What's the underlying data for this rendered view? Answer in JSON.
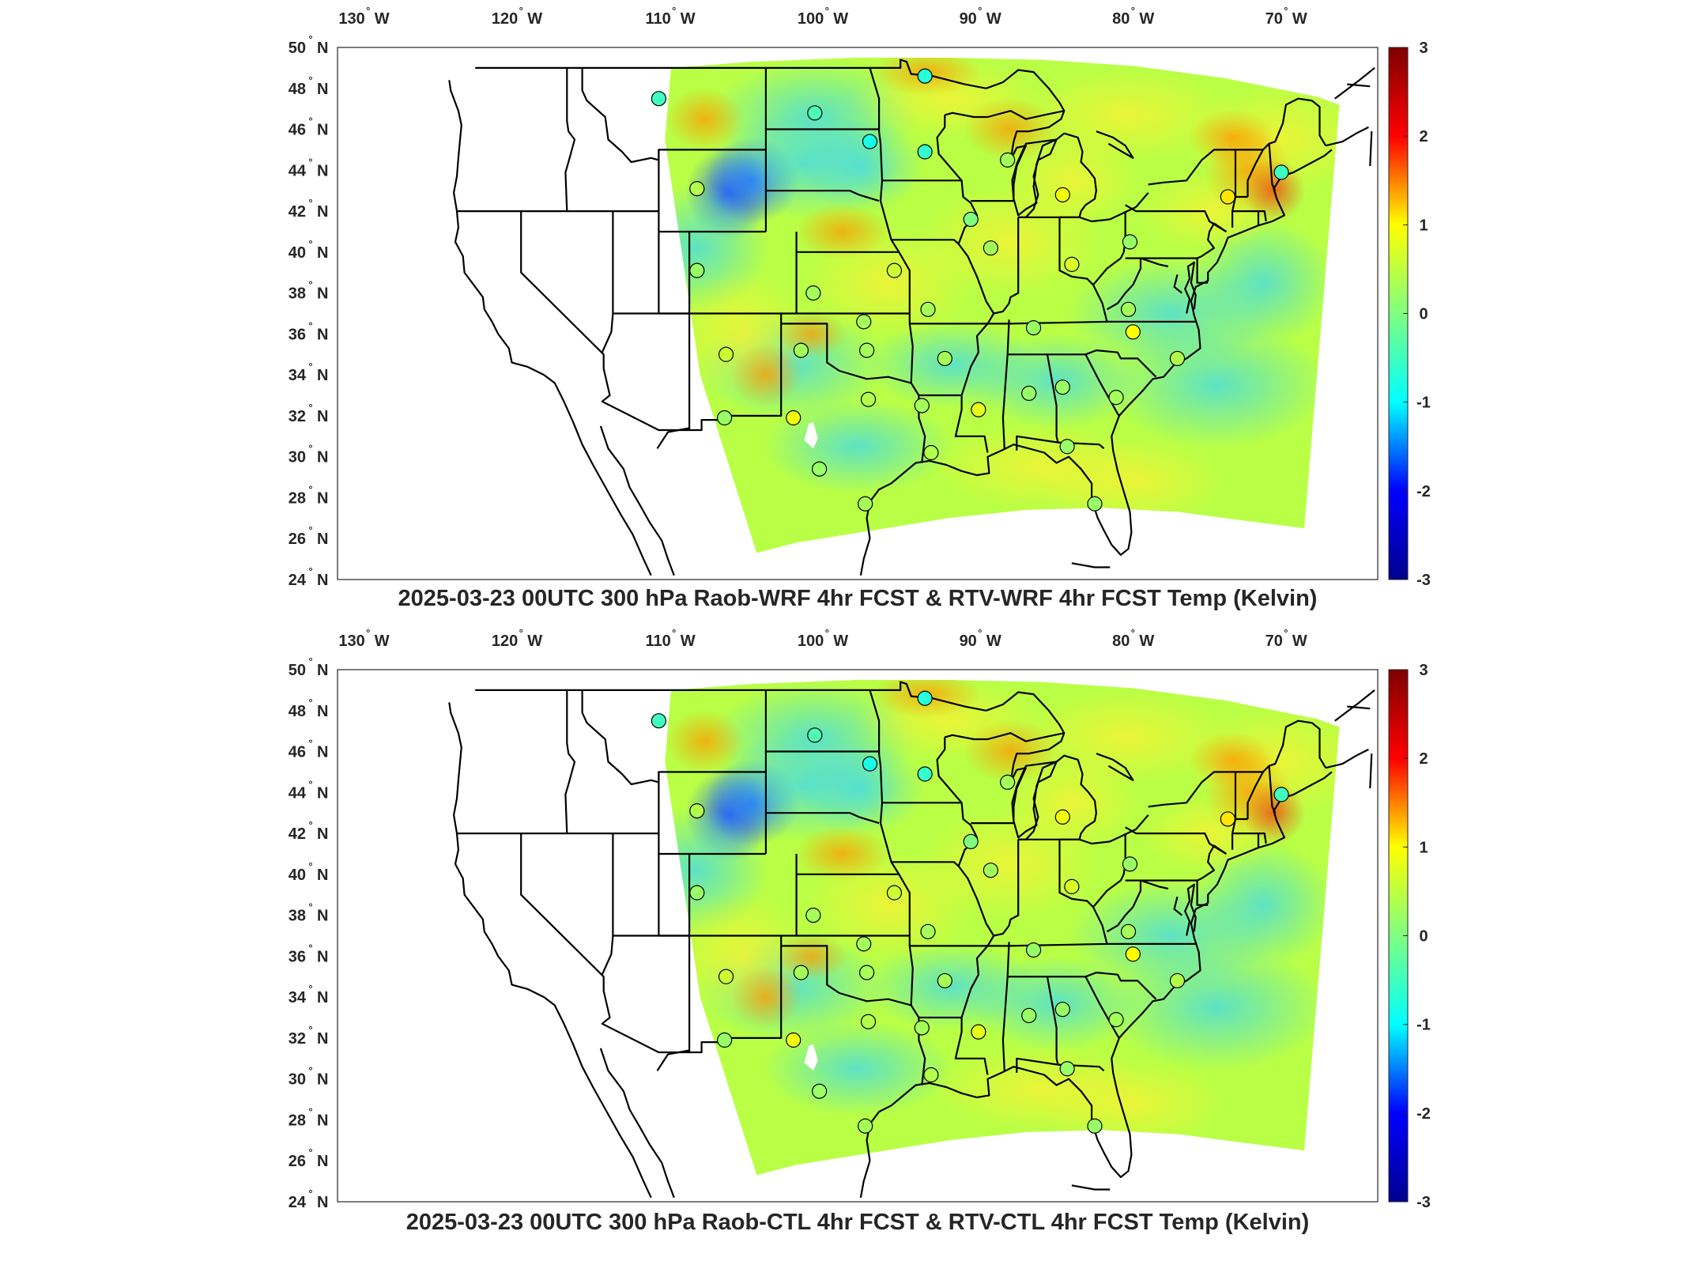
{
  "chart_data": [
    {
      "type": "heatmap",
      "title": "2025-03-23 00UTC 300 hPa Raob-WRF 4hr FCST & RTV-WRF 4hr FCST Temp (Kelvin)",
      "x_ticks": [
        {
          "value": -130,
          "label": "130",
          "hemi": "W"
        },
        {
          "value": -120,
          "label": "120",
          "hemi": "W"
        },
        {
          "value": -110,
          "label": "110",
          "hemi": "W"
        },
        {
          "value": -100,
          "label": "100",
          "hemi": "W"
        },
        {
          "value": -90,
          "label": "90",
          "hemi": "W"
        },
        {
          "value": -80,
          "label": "80",
          "hemi": "W"
        },
        {
          "value": -70,
          "label": "70",
          "hemi": "W"
        }
      ],
      "y_ticks": [
        {
          "value": 50,
          "label": "50",
          "hemi": "N"
        },
        {
          "value": 48,
          "label": "48",
          "hemi": "N"
        },
        {
          "value": 46,
          "label": "46",
          "hemi": "N"
        },
        {
          "value": 44,
          "label": "44",
          "hemi": "N"
        },
        {
          "value": 42,
          "label": "42",
          "hemi": "N"
        },
        {
          "value": 40,
          "label": "40",
          "hemi": "N"
        },
        {
          "value": 38,
          "label": "38",
          "hemi": "N"
        },
        {
          "value": 36,
          "label": "36",
          "hemi": "N"
        },
        {
          "value": 34,
          "label": "34",
          "hemi": "N"
        },
        {
          "value": 32,
          "label": "32",
          "hemi": "N"
        },
        {
          "value": 30,
          "label": "30",
          "hemi": "N"
        },
        {
          "value": 28,
          "label": "28",
          "hemi": "N"
        },
        {
          "value": 26,
          "label": "26",
          "hemi": "N"
        },
        {
          "value": 24,
          "label": "24",
          "hemi": "N"
        }
      ],
      "xlim": [
        -132,
        -64
      ],
      "ylim": [
        24,
        50
      ],
      "colorbar": {
        "min": -3,
        "max": 3,
        "ticks": [
          3,
          2,
          1,
          0,
          -1,
          -2,
          -3
        ],
        "colormap": "jet",
        "stops": [
          "#00008f",
          "#0000ff",
          "#00ffff",
          "#7fff7f",
          "#ffff00",
          "#ff0000",
          "#800000"
        ]
      },
      "stations": [
        {
          "lon": -111.0,
          "lat": 47.5,
          "value": -0.5
        },
        {
          "lon": -100.8,
          "lat": 46.8,
          "value": -0.4
        },
        {
          "lon": -97.2,
          "lat": 45.4,
          "value": -0.8
        },
        {
          "lon": -93.6,
          "lat": 48.6,
          "value": -0.7
        },
        {
          "lon": -93.6,
          "lat": 44.9,
          "value": -0.6
        },
        {
          "lon": -108.5,
          "lat": 43.1,
          "value": 0.4
        },
        {
          "lon": -88.2,
          "lat": 44.5,
          "value": 0.3
        },
        {
          "lon": -84.6,
          "lat": 42.8,
          "value": 0.9
        },
        {
          "lon": -73.8,
          "lat": 42.7,
          "value": 1.1
        },
        {
          "lon": -70.3,
          "lat": 43.9,
          "value": -0.5
        },
        {
          "lon": -90.6,
          "lat": 41.6,
          "value": 0.0
        },
        {
          "lon": -89.3,
          "lat": 40.2,
          "value": 0.3
        },
        {
          "lon": -80.2,
          "lat": 40.5,
          "value": 0.2
        },
        {
          "lon": -84.0,
          "lat": 39.4,
          "value": 0.7
        },
        {
          "lon": -108.5,
          "lat": 39.1,
          "value": 0.2
        },
        {
          "lon": -100.9,
          "lat": 38.0,
          "value": 0.3
        },
        {
          "lon": -95.6,
          "lat": 39.1,
          "value": 0.6
        },
        {
          "lon": -97.6,
          "lat": 36.6,
          "value": 0.3
        },
        {
          "lon": -93.4,
          "lat": 37.2,
          "value": 0.3
        },
        {
          "lon": -86.5,
          "lat": 36.3,
          "value": 0.2
        },
        {
          "lon": -80.3,
          "lat": 37.2,
          "value": 0.3
        },
        {
          "lon": -80.0,
          "lat": 36.1,
          "value": 1.0
        },
        {
          "lon": -77.1,
          "lat": 34.8,
          "value": 0.4
        },
        {
          "lon": -106.6,
          "lat": 35.0,
          "value": 0.6
        },
        {
          "lon": -101.7,
          "lat": 35.2,
          "value": 0.3
        },
        {
          "lon": -97.4,
          "lat": 35.2,
          "value": 0.3
        },
        {
          "lon": -92.3,
          "lat": 34.8,
          "value": 0.3
        },
        {
          "lon": -97.3,
          "lat": 32.8,
          "value": 0.4
        },
        {
          "lon": -93.8,
          "lat": 32.5,
          "value": 0.3
        },
        {
          "lon": -90.1,
          "lat": 32.3,
          "value": 0.8
        },
        {
          "lon": -86.8,
          "lat": 33.1,
          "value": 0.2
        },
        {
          "lon": -84.6,
          "lat": 33.4,
          "value": 0.2
        },
        {
          "lon": -81.1,
          "lat": 32.9,
          "value": 0.3
        },
        {
          "lon": -106.7,
          "lat": 31.9,
          "value": 0.2
        },
        {
          "lon": -102.2,
          "lat": 31.9,
          "value": 0.9
        },
        {
          "lon": -100.5,
          "lat": 29.4,
          "value": 0.2
        },
        {
          "lon": -97.5,
          "lat": 27.7,
          "value": 0.3
        },
        {
          "lon": -93.2,
          "lat": 30.2,
          "value": 0.4
        },
        {
          "lon": -84.3,
          "lat": 30.5,
          "value": 0.2
        },
        {
          "lon": -82.5,
          "lat": 27.7,
          "value": 0.2
        }
      ]
    },
    {
      "type": "heatmap",
      "title": "2025-03-23 00UTC 300 hPa Raob-CTL 4hr FCST & RTV-CTL 4hr FCST Temp (Kelvin)",
      "x_ticks": [
        {
          "value": -130,
          "label": "130",
          "hemi": "W"
        },
        {
          "value": -120,
          "label": "120",
          "hemi": "W"
        },
        {
          "value": -110,
          "label": "110",
          "hemi": "W"
        },
        {
          "value": -100,
          "label": "100",
          "hemi": "W"
        },
        {
          "value": -90,
          "label": "90",
          "hemi": "W"
        },
        {
          "value": -80,
          "label": "80",
          "hemi": "W"
        },
        {
          "value": -70,
          "label": "70",
          "hemi": "W"
        }
      ],
      "y_ticks": [
        {
          "value": 50,
          "label": "50",
          "hemi": "N"
        },
        {
          "value": 48,
          "label": "48",
          "hemi": "N"
        },
        {
          "value": 46,
          "label": "46",
          "hemi": "N"
        },
        {
          "value": 44,
          "label": "44",
          "hemi": "N"
        },
        {
          "value": 42,
          "label": "42",
          "hemi": "N"
        },
        {
          "value": 40,
          "label": "40",
          "hemi": "N"
        },
        {
          "value": 38,
          "label": "38",
          "hemi": "N"
        },
        {
          "value": 36,
          "label": "36",
          "hemi": "N"
        },
        {
          "value": 34,
          "label": "34",
          "hemi": "N"
        },
        {
          "value": 32,
          "label": "32",
          "hemi": "N"
        },
        {
          "value": 30,
          "label": "30",
          "hemi": "N"
        },
        {
          "value": 28,
          "label": "28",
          "hemi": "N"
        },
        {
          "value": 26,
          "label": "26",
          "hemi": "N"
        },
        {
          "value": 24,
          "label": "24",
          "hemi": "N"
        }
      ],
      "xlim": [
        -132,
        -64
      ],
      "ylim": [
        24,
        50
      ],
      "colorbar": {
        "min": -3,
        "max": 3,
        "ticks": [
          3,
          2,
          1,
          0,
          -1,
          -2,
          -3
        ],
        "colormap": "jet",
        "stops": [
          "#00008f",
          "#0000ff",
          "#00ffff",
          "#7fff7f",
          "#ffff00",
          "#ff0000",
          "#800000"
        ]
      },
      "stations": [
        {
          "lon": -111.0,
          "lat": 47.5,
          "value": -0.5
        },
        {
          "lon": -100.8,
          "lat": 46.8,
          "value": -0.4
        },
        {
          "lon": -97.2,
          "lat": 45.4,
          "value": -0.8
        },
        {
          "lon": -93.6,
          "lat": 48.6,
          "value": -0.7
        },
        {
          "lon": -93.6,
          "lat": 44.9,
          "value": -0.6
        },
        {
          "lon": -108.5,
          "lat": 43.1,
          "value": 0.4
        },
        {
          "lon": -88.2,
          "lat": 44.5,
          "value": 0.3
        },
        {
          "lon": -84.6,
          "lat": 42.8,
          "value": 0.9
        },
        {
          "lon": -73.8,
          "lat": 42.7,
          "value": 1.1
        },
        {
          "lon": -70.3,
          "lat": 43.9,
          "value": -0.5
        },
        {
          "lon": -90.6,
          "lat": 41.6,
          "value": 0.0
        },
        {
          "lon": -89.3,
          "lat": 40.2,
          "value": 0.3
        },
        {
          "lon": -80.2,
          "lat": 40.5,
          "value": 0.2
        },
        {
          "lon": -84.0,
          "lat": 39.4,
          "value": 0.7
        },
        {
          "lon": -108.5,
          "lat": 39.1,
          "value": 0.2
        },
        {
          "lon": -100.9,
          "lat": 38.0,
          "value": 0.3
        },
        {
          "lon": -95.6,
          "lat": 39.1,
          "value": 0.6
        },
        {
          "lon": -97.6,
          "lat": 36.6,
          "value": 0.3
        },
        {
          "lon": -93.4,
          "lat": 37.2,
          "value": 0.3
        },
        {
          "lon": -86.5,
          "lat": 36.3,
          "value": 0.2
        },
        {
          "lon": -80.3,
          "lat": 37.2,
          "value": 0.3
        },
        {
          "lon": -80.0,
          "lat": 36.1,
          "value": 1.0
        },
        {
          "lon": -77.1,
          "lat": 34.8,
          "value": 0.4
        },
        {
          "lon": -106.6,
          "lat": 35.0,
          "value": 0.6
        },
        {
          "lon": -101.7,
          "lat": 35.2,
          "value": 0.3
        },
        {
          "lon": -97.4,
          "lat": 35.2,
          "value": 0.3
        },
        {
          "lon": -92.3,
          "lat": 34.8,
          "value": 0.3
        },
        {
          "lon": -97.3,
          "lat": 32.8,
          "value": 0.4
        },
        {
          "lon": -93.8,
          "lat": 32.5,
          "value": 0.3
        },
        {
          "lon": -90.1,
          "lat": 32.3,
          "value": 0.8
        },
        {
          "lon": -86.8,
          "lat": 33.1,
          "value": 0.2
        },
        {
          "lon": -84.6,
          "lat": 33.4,
          "value": 0.2
        },
        {
          "lon": -81.1,
          "lat": 32.9,
          "value": 0.3
        },
        {
          "lon": -106.7,
          "lat": 31.9,
          "value": 0.2
        },
        {
          "lon": -102.2,
          "lat": 31.9,
          "value": 0.9
        },
        {
          "lon": -100.5,
          "lat": 29.4,
          "value": 0.2
        },
        {
          "lon": -97.5,
          "lat": 27.7,
          "value": 0.3
        },
        {
          "lon": -93.2,
          "lat": 30.2,
          "value": 0.4
        },
        {
          "lon": -84.3,
          "lat": 30.5,
          "value": 0.2
        },
        {
          "lon": -82.5,
          "lat": 27.7,
          "value": 0.2
        }
      ]
    }
  ]
}
